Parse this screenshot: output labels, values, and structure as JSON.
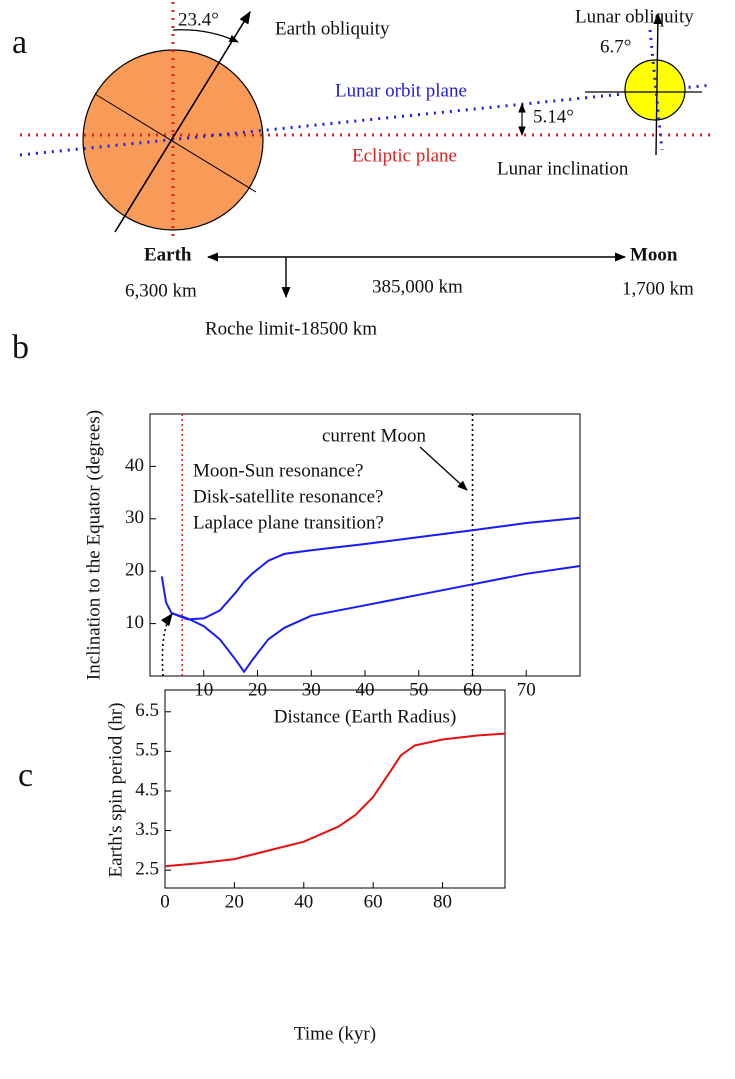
{
  "panel_labels": [
    "a",
    "b",
    "c"
  ],
  "diagram": {
    "earth_obliquity_angle": "23.4°",
    "earth_obliquity": "Earth obliquity",
    "lunar_obliquity": "Lunar obliquity",
    "lunar_obliquity_angle": "6.7°",
    "lunar_orbit_plane": "Lunar orbit plane",
    "lunar_inclination_angle": "5.14°",
    "ecliptic_plane": "Ecliptic  plane",
    "lunar_inclination": "Lunar inclination",
    "earth": "Earth",
    "moon": "Moon",
    "earth_radius": "6,300 km",
    "distance": "385,000 km",
    "moon_radius": "1,700 km",
    "roche_limit": "Roche limit-18500 km"
  },
  "chart_data": [
    {
      "type": "line",
      "x_label": "Distance (Earth Radius)",
      "y_label": "Inclination to the Equator (degrees)",
      "x": [
        2.2,
        3,
        4,
        7,
        10,
        13,
        16,
        17.5,
        19,
        22,
        25,
        30,
        40,
        50,
        60,
        70,
        80
      ],
      "series": [
        {
          "color": "#1a1aff",
          "values": [
            19,
            14,
            12,
            10.8,
            11,
            12.5,
            16,
            18,
            19.5,
            22,
            23.3,
            24,
            25.2,
            26.5,
            27.8,
            29.2,
            30.2
          ]
        },
        {
          "color": "#1a1aff",
          "values": [
            null,
            null,
            12,
            11,
            9.5,
            7,
            3,
            0.8,
            3,
            7,
            9.2,
            11.5,
            13.5,
            15.5,
            17.5,
            19.5,
            21
          ]
        }
      ],
      "vlines": [
        {
          "x": 6,
          "color": "#e02020"
        },
        {
          "x": 60,
          "color": "#000000"
        }
      ],
      "annotations": [
        "current Moon",
        "Moon-Sun resonance?",
        "Disk-satellite resonance?",
        "Laplace plane transition?"
      ],
      "xlim": [
        0,
        80
      ],
      "ylim": [
        0,
        50
      ],
      "xticks": [
        10,
        20,
        30,
        40,
        50,
        60,
        70
      ],
      "yticks": [
        10,
        20,
        30,
        40
      ]
    },
    {
      "type": "line",
      "x_label": "Time (kyr)",
      "y_label": "Earth's spin period (hr)",
      "x": [
        0,
        10,
        20,
        30,
        40,
        50,
        55,
        60,
        65,
        68,
        72,
        80,
        90,
        98
      ],
      "series": [
        {
          "color": "#e81010",
          "values": [
            2.6,
            2.68,
            2.78,
            3.0,
            3.22,
            3.6,
            3.9,
            4.35,
            5.0,
            5.4,
            5.65,
            5.8,
            5.9,
            5.95
          ]
        }
      ],
      "xlim": [
        0,
        98
      ],
      "ylim": [
        2.05,
        7.05
      ],
      "xticks": [
        0,
        20,
        40,
        60,
        80
      ],
      "yticks": [
        2.5,
        3.5,
        4.5,
        5.5,
        6.5
      ]
    }
  ]
}
